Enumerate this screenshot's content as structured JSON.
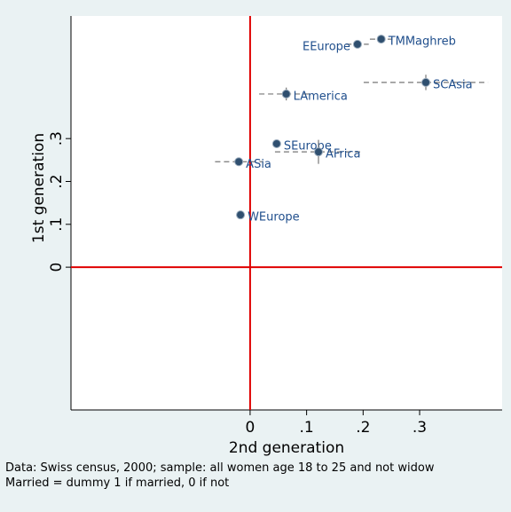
{
  "chart_data": {
    "type": "scatter",
    "x_label": "2nd generation",
    "y_label": "1st generation",
    "notes": [
      "Data: Swiss census, 2000; sample: all women age 18 to 25 and not widow",
      "Married = dummy 1 if married, 0 if not"
    ],
    "x": [
      0.232,
      0.19,
      0.311,
      0.064,
      0.047,
      0.121,
      -0.02,
      -0.017
    ],
    "series": [
      {
        "color": "#2f4f6f",
        "labels": [
          "TMMaghreb",
          "EEurope",
          "SCAsia",
          "LAmerica",
          "SEurope",
          "AFrica",
          "ASia",
          "WEurope"
        ],
        "values": [
          0.532,
          0.52,
          0.431,
          0.404,
          0.288,
          0.269,
          0.246,
          0.122
        ],
        "xerr": [
          0.02,
          0.02,
          0.11,
          0.048,
          0.005,
          0.077,
          0.042,
          0.004
        ],
        "yerr": [
          0.01,
          0.006,
          0.018,
          0.015,
          0.005,
          0.028,
          0.008,
          0.004
        ]
      }
    ],
    "xlim": [
      -0.317,
      0.446
    ],
    "ylim": [
      -0.333,
      0.586
    ],
    "xticks": [
      0,
      {
        "value": 0.1,
        "label": ".1"
      },
      {
        "value": 0.2,
        "label": ".2"
      },
      {
        "value": 0.3,
        "label": ".3"
      }
    ],
    "yticks": [
      0,
      {
        "value": 0.1,
        "label": ".1"
      },
      {
        "value": 0.2,
        "label": ".2"
      },
      {
        "value": 0.3,
        "label": ".3"
      }
    ],
    "reference_lines": {
      "x": 0,
      "y": 0,
      "color": "#e00000"
    },
    "errorbar_color": "#777777"
  }
}
